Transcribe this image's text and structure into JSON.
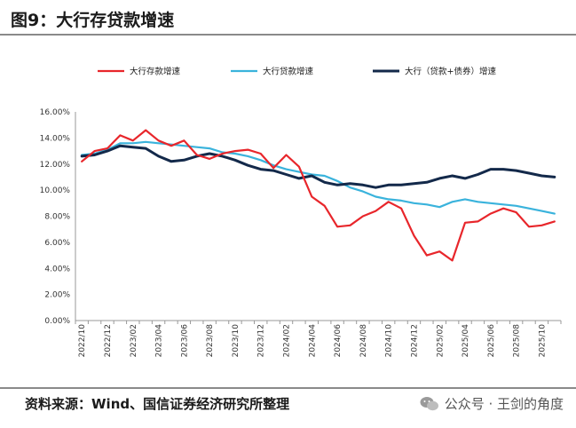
{
  "header": {
    "title": "图9：大行存贷款增速"
  },
  "footer": {
    "source": "资料来源：Wind、国信证券经济研究所整理",
    "watermark": "公众号 · 王剑的角度",
    "watermark_icon": "wechat-icon"
  },
  "chart_data": {
    "type": "line",
    "title": "大行存贷款增速",
    "ylim": [
      0,
      16
    ],
    "ytick_values": [
      0,
      2,
      4,
      6,
      8,
      10,
      12,
      14,
      16
    ],
    "ytick_labels": [
      "0.00%",
      "2.00%",
      "4.00%",
      "6.00%",
      "8.00%",
      "10.00%",
      "12.00%",
      "14.00%",
      "16.00%"
    ],
    "x_start_month": "2022/10",
    "n_points": 38,
    "x_tick_labels": [
      "2022/10",
      "2022/12",
      "2023/02",
      "2023/04",
      "2023/06",
      "2023/08",
      "2023/10",
      "2023/12",
      "2024/02",
      "2024/04",
      "2024/06",
      "2024/08",
      "2024/10",
      "2024/12",
      "2025/02",
      "2025/04",
      "2025/06",
      "2025/08",
      "2025/10"
    ],
    "legend_position": "top",
    "series": [
      {
        "name": "大行存款增速",
        "color": "#e8262b",
        "values": [
          12.2,
          13.0,
          13.2,
          14.2,
          13.8,
          14.6,
          13.8,
          13.4,
          13.8,
          12.7,
          12.4,
          12.8,
          13.0,
          13.1,
          12.8,
          11.7,
          12.7,
          11.8,
          9.5,
          8.8,
          7.2,
          7.3,
          8.0,
          8.4,
          9.1,
          8.6,
          6.5,
          5.0,
          5.3,
          4.6,
          7.5,
          7.6,
          8.2,
          8.6,
          8.3,
          7.2,
          7.3,
          7.6
        ]
      },
      {
        "name": "大行贷款增速",
        "color": "#3ab3dc",
        "values": [
          12.7,
          12.8,
          13.1,
          13.6,
          13.6,
          13.7,
          13.6,
          13.5,
          13.4,
          13.3,
          13.2,
          12.9,
          12.8,
          12.6,
          12.3,
          11.9,
          11.6,
          11.4,
          11.2,
          11.1,
          10.7,
          10.2,
          9.9,
          9.5,
          9.3,
          9.2,
          9.0,
          8.9,
          8.7,
          9.1,
          9.3,
          9.1,
          9.0,
          8.9,
          8.8,
          8.6,
          8.4,
          8.2
        ]
      },
      {
        "name": "大行（贷款+债券）增速",
        "color": "#13294a",
        "values": [
          12.6,
          12.7,
          13.0,
          13.4,
          13.3,
          13.2,
          12.6,
          12.2,
          12.3,
          12.6,
          12.8,
          12.6,
          12.3,
          11.9,
          11.6,
          11.5,
          11.2,
          10.9,
          11.1,
          10.6,
          10.4,
          10.5,
          10.4,
          10.2,
          10.4,
          10.4,
          10.5,
          10.6,
          10.9,
          11.1,
          10.9,
          11.2,
          11.6,
          11.6,
          11.5,
          11.3,
          11.1,
          11.0
        ]
      }
    ]
  }
}
